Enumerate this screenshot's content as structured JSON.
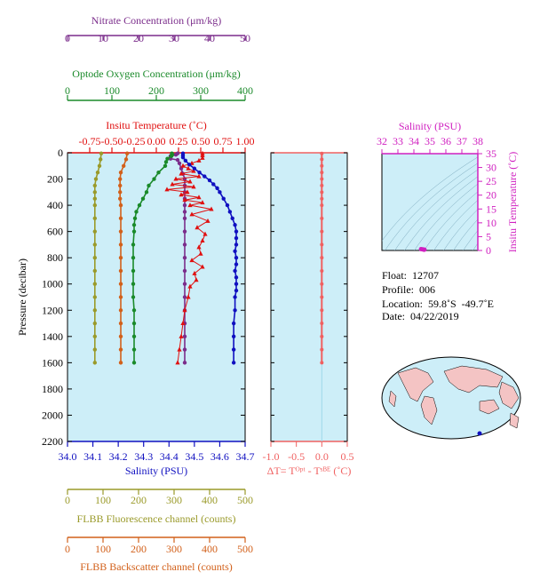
{
  "colors": {
    "nitrate": "#7b2d8b",
    "oxygen": "#1a8a2a",
    "temperature": "#e01010",
    "salinity": "#1010c0",
    "fluorescence": "#9a9a2a",
    "backscatter": "#d2601a",
    "delta_t": "#f06060",
    "inset": "#d020c0",
    "panel_bg": "#cdeef8",
    "land": "#f4c4c4"
  },
  "info": {
    "float": "Float:  12707",
    "profile": "Profile:  006",
    "location": "Location:  59.8˚S  -49.7˚E",
    "date": "Date:  04/22/2019"
  },
  "chart_data": [
    {
      "type": "line",
      "panel": "main",
      "ylabel": "Pressure (decibar)",
      "ylim": [
        2200,
        0
      ],
      "yticks": [
        0,
        200,
        400,
        600,
        800,
        1000,
        1200,
        1400,
        1600,
        1800,
        2000,
        2200
      ],
      "axes": [
        {
          "key": "nitrate",
          "label": "Nitrate Concentration (μm/kg)",
          "range": [
            0,
            50
          ],
          "ticks": [
            0,
            10,
            20,
            30,
            40,
            50
          ],
          "tick_labels": [
            "0",
            "10",
            "20",
            "30",
            "40",
            "50"
          ]
        },
        {
          "key": "oxygen",
          "label": "Optode Oxygen Concentration (μm/kg)",
          "range": [
            0,
            400
          ],
          "ticks": [
            0,
            100,
            200,
            300,
            400
          ],
          "tick_labels": [
            "0",
            "100",
            "200",
            "300",
            "400"
          ]
        },
        {
          "key": "temperature",
          "label": "Insitu Temperature (˚C)",
          "range": [
            -1.0,
            1.0
          ],
          "ticks": [
            -0.75,
            -0.5,
            -0.25,
            0.0,
            0.25,
            0.5,
            0.75,
            1.0
          ],
          "tick_labels": [
            "-0.75",
            "-0.50",
            "-0.25",
            "0.00",
            "0.25",
            "0.50",
            "0.75",
            "1.00"
          ]
        },
        {
          "key": "salinity",
          "label": "Salinity (PSU)",
          "range": [
            34.0,
            34.7
          ],
          "ticks": [
            34.0,
            34.1,
            34.2,
            34.3,
            34.4,
            34.5,
            34.6,
            34.7
          ],
          "tick_labels": [
            "34.0",
            "34.1",
            "34.2",
            "34.3",
            "34.4",
            "34.5",
            "34.6",
            "34.7"
          ]
        },
        {
          "key": "fluorescence",
          "label": "FLBB Fluorescence channel (counts)",
          "range": [
            0,
            500
          ],
          "ticks": [
            0,
            100,
            200,
            300,
            400,
            500
          ],
          "tick_labels": [
            "0",
            "100",
            "200",
            "300",
            "400",
            "500"
          ]
        },
        {
          "key": "backscatter",
          "label": "FLBB Backscatter channel (counts)",
          "range": [
            0,
            500
          ],
          "ticks": [
            0,
            100,
            200,
            300,
            400,
            500
          ],
          "tick_labels": [
            "0",
            "100",
            "200",
            "300",
            "400",
            "500"
          ]
        }
      ],
      "series": [
        {
          "key": "nitrate",
          "marker": "circle",
          "points": [
            [
              31,
              5
            ],
            [
              30.5,
              15
            ],
            [
              29,
              25
            ],
            [
              29,
              35
            ],
            [
              29,
              45
            ],
            [
              31,
              55
            ],
            [
              31.5,
              80
            ],
            [
              32,
              120
            ],
            [
              32.5,
              160
            ],
            [
              33,
              200
            ],
            [
              33,
              250
            ],
            [
              33,
              300
            ],
            [
              33,
              350
            ],
            [
              33,
              400
            ],
            [
              33,
              450
            ],
            [
              33,
              500
            ],
            [
              33,
              600
            ],
            [
              33,
              700
            ],
            [
              33,
              800
            ],
            [
              33,
              900
            ],
            [
              33,
              1000
            ],
            [
              33,
              1100
            ],
            [
              33,
              1200
            ],
            [
              33,
              1300
            ],
            [
              33,
              1400
            ],
            [
              33,
              1500
            ],
            [
              33,
              1600
            ]
          ]
        },
        {
          "key": "oxygen",
          "marker": "circle",
          "points": [
            [
              235,
              5
            ],
            [
              236,
              15
            ],
            [
              234,
              25
            ],
            [
              225,
              45
            ],
            [
              222,
              70
            ],
            [
              220,
              100
            ],
            [
              205,
              150
            ],
            [
              195,
              200
            ],
            [
              183,
              250
            ],
            [
              178,
              300
            ],
            [
              170,
              350
            ],
            [
              162,
              400
            ],
            [
              155,
              450
            ],
            [
              152,
              500
            ],
            [
              150,
              550
            ],
            [
              150,
              600
            ],
            [
              148,
              700
            ],
            [
              148,
              800
            ],
            [
              148,
              900
            ],
            [
              148,
              1000
            ],
            [
              148,
              1100
            ],
            [
              150,
              1200
            ],
            [
              150,
              1300
            ],
            [
              150,
              1400
            ],
            [
              150,
              1500
            ],
            [
              150,
              1600
            ]
          ]
        },
        {
          "key": "temperature",
          "marker": "triangle",
          "points": [
            [
              0.52,
              5
            ],
            [
              0.52,
              20
            ],
            [
              0.52,
              40
            ],
            [
              0.48,
              60
            ],
            [
              0.4,
              80
            ],
            [
              0.3,
              100
            ],
            [
              0.36,
              120
            ],
            [
              0.42,
              140
            ],
            [
              0.28,
              160
            ],
            [
              0.48,
              180
            ],
            [
              0.22,
              200
            ],
            [
              0.38,
              220
            ],
            [
              0.18,
              240
            ],
            [
              0.42,
              260
            ],
            [
              0.12,
              280
            ],
            [
              0.35,
              300
            ],
            [
              0.28,
              320
            ],
            [
              0.48,
              340
            ],
            [
              0.32,
              360
            ],
            [
              0.52,
              380
            ],
            [
              0.38,
              400
            ],
            [
              0.62,
              430
            ],
            [
              0.4,
              470
            ],
            [
              0.58,
              520
            ],
            [
              0.46,
              570
            ],
            [
              0.55,
              620
            ],
            [
              0.52,
              670
            ],
            [
              0.48,
              720
            ],
            [
              0.5,
              770
            ],
            [
              0.4,
              820
            ],
            [
              0.52,
              870
            ],
            [
              0.43,
              920
            ],
            [
              0.45,
              970
            ],
            [
              0.38,
              1020
            ],
            [
              0.36,
              1100
            ],
            [
              0.32,
              1200
            ],
            [
              0.3,
              1300
            ],
            [
              0.28,
              1400
            ],
            [
              0.26,
              1500
            ],
            [
              0.24,
              1600
            ]
          ]
        },
        {
          "key": "salinity",
          "marker": "circle",
          "points": [
            [
              34.455,
              5
            ],
            [
              34.455,
              20
            ],
            [
              34.455,
              35
            ],
            [
              34.465,
              60
            ],
            [
              34.48,
              90
            ],
            [
              34.5,
              120
            ],
            [
              34.52,
              150
            ],
            [
              34.54,
              180
            ],
            [
              34.56,
              210
            ],
            [
              34.575,
              240
            ],
            [
              34.59,
              270
            ],
            [
              34.6,
              300
            ],
            [
              34.615,
              350
            ],
            [
              34.63,
              400
            ],
            [
              34.64,
              450
            ],
            [
              34.65,
              500
            ],
            [
              34.66,
              550
            ],
            [
              34.665,
              600
            ],
            [
              34.665,
              650
            ],
            [
              34.665,
              700
            ],
            [
              34.66,
              750
            ],
            [
              34.665,
              800
            ],
            [
              34.665,
              850
            ],
            [
              34.66,
              900
            ],
            [
              34.665,
              950
            ],
            [
              34.665,
              1000
            ],
            [
              34.665,
              1050
            ],
            [
              34.66,
              1100
            ],
            [
              34.66,
              1200
            ],
            [
              34.655,
              1300
            ],
            [
              34.655,
              1400
            ],
            [
              34.655,
              1500
            ],
            [
              34.655,
              1600
            ]
          ]
        },
        {
          "key": "fluorescence",
          "marker": "circle",
          "points": [
            [
              95,
              5
            ],
            [
              93,
              50
            ],
            [
              90,
              100
            ],
            [
              85,
              150
            ],
            [
              80,
              200
            ],
            [
              77,
              250
            ],
            [
              77,
              300
            ],
            [
              77,
              350
            ],
            [
              77,
              400
            ],
            [
              77,
              500
            ],
            [
              77,
              600
            ],
            [
              77,
              700
            ],
            [
              77,
              800
            ],
            [
              77,
              900
            ],
            [
              77,
              1000
            ],
            [
              77,
              1100
            ],
            [
              77,
              1200
            ],
            [
              77,
              1300
            ],
            [
              77,
              1400
            ],
            [
              77,
              1500
            ],
            [
              77,
              1600
            ]
          ]
        },
        {
          "key": "backscatter",
          "marker": "circle",
          "points": [
            [
              168,
              5
            ],
            [
              165,
              50
            ],
            [
              158,
              100
            ],
            [
              150,
              150
            ],
            [
              148,
              200
            ],
            [
              148,
              250
            ],
            [
              148,
              300
            ],
            [
              148,
              350
            ],
            [
              150,
              400
            ],
            [
              150,
              500
            ],
            [
              150,
              600
            ],
            [
              150,
              700
            ],
            [
              150,
              800
            ],
            [
              150,
              900
            ],
            [
              150,
              1000
            ],
            [
              150,
              1100
            ],
            [
              150,
              1200
            ],
            [
              150,
              1300
            ],
            [
              150,
              1400
            ],
            [
              150,
              1500
            ],
            [
              150,
              1600
            ]
          ]
        }
      ]
    },
    {
      "type": "line",
      "panel": "delta_t",
      "xlabel": "ΔT= Tᴼᵖᵗ - Tˢᴮᴱ (˚C)",
      "xlim": [
        -1.0,
        0.5
      ],
      "xticks": [
        -1.0,
        -0.5,
        0.0,
        0.5
      ],
      "xtick_labels": [
        "-1.0",
        "-0.5",
        "0.0",
        "0.5"
      ],
      "ylim": [
        2200,
        0
      ],
      "series": [
        {
          "key": "delta_t",
          "marker": "circle",
          "points": [
            [
              0.0,
              5
            ],
            [
              0.0,
              50
            ],
            [
              0.0,
              100
            ],
            [
              0.0,
              150
            ],
            [
              0.0,
              200
            ],
            [
              0.0,
              250
            ],
            [
              0.0,
              300
            ],
            [
              0.0,
              350
            ],
            [
              0.0,
              400
            ],
            [
              0.0,
              500
            ],
            [
              0.0,
              600
            ],
            [
              0.0,
              700
            ],
            [
              0.0,
              800
            ],
            [
              0.0,
              900
            ],
            [
              0.0,
              1000
            ],
            [
              0.0,
              1100
            ],
            [
              0.0,
              1200
            ],
            [
              0.0,
              1300
            ],
            [
              0.0,
              1400
            ],
            [
              0.0,
              1500
            ],
            [
              0.0,
              1600
            ]
          ]
        }
      ]
    },
    {
      "type": "scatter",
      "panel": "ts_inset",
      "xlabel": "Salinity (PSU)",
      "ylabel": "Insitu Temperature (˚C)",
      "xlim": [
        32,
        38
      ],
      "ylim": [
        0,
        35
      ],
      "xticks": [
        32,
        33,
        34,
        35,
        36,
        37,
        38
      ],
      "xtick_labels": [
        "32",
        "33",
        "34",
        "35",
        "36",
        "37",
        "38"
      ],
      "yticks": [
        0,
        5,
        10,
        15,
        20,
        25,
        30,
        35
      ],
      "ytick_labels": [
        "0",
        "5",
        "10",
        "15",
        "20",
        "25",
        "30",
        "35"
      ],
      "points": [
        [
          34.45,
          0.5
        ],
        [
          34.55,
          0.4
        ],
        [
          34.62,
          0.3
        ],
        [
          34.66,
          0.3
        ]
      ]
    }
  ]
}
